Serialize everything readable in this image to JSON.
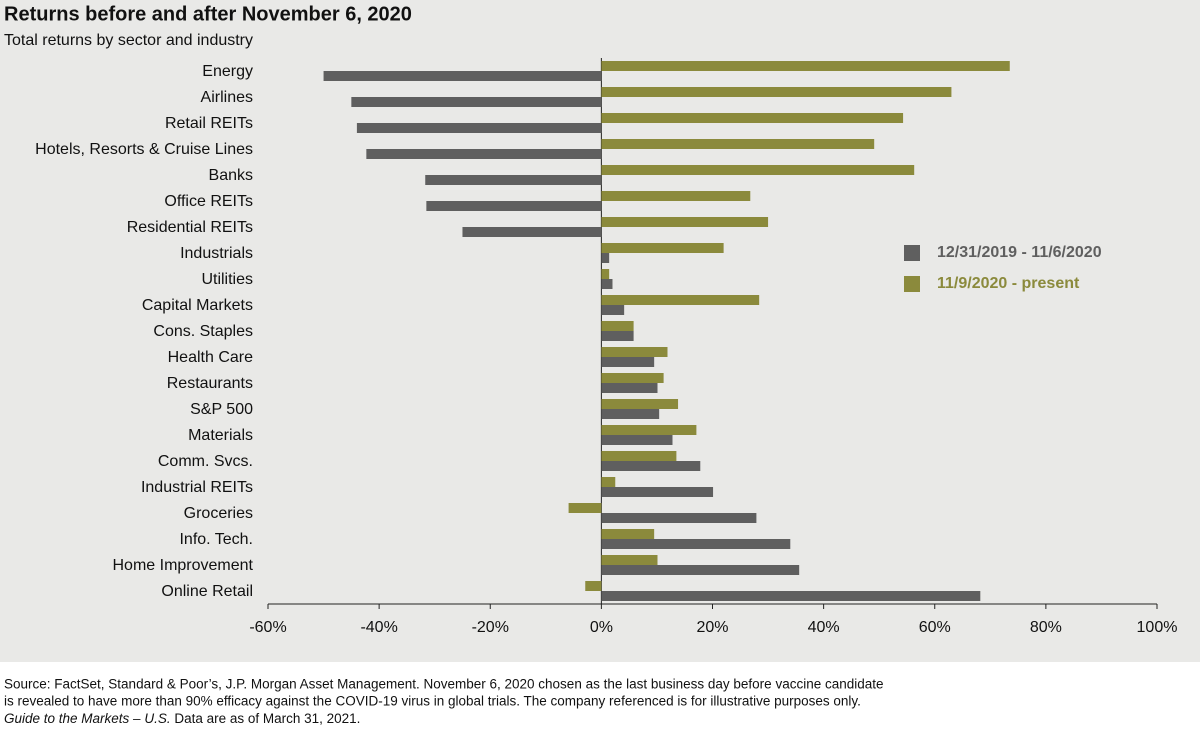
{
  "chart_data": {
    "type": "bar",
    "orientation": "horizontal",
    "title": "Returns before and after November 6, 2020",
    "subtitle": "Total returns by sector and industry",
    "categories": [
      "Energy",
      "Airlines",
      "Retail REITs",
      "Hotels, Resorts & Cruise Lines",
      "Banks",
      "Office REITs",
      "Residential REITs",
      "Industrials",
      "Utilities",
      "Capital Markets",
      "Cons. Staples",
      "Health Care",
      "Restaurants",
      "S&P 500",
      "Materials",
      "Comm. Svcs.",
      "Industrial REITs",
      "Groceries",
      "Info. Tech.",
      "Home Improvement",
      "Online Retail"
    ],
    "series": [
      {
        "name": "12/31/2019 - 11/6/2020",
        "color": "#5f5f5f",
        "values": [
          -50,
          -45,
          -44,
          -42.3,
          -31.7,
          -31.5,
          -25,
          1.4,
          2,
          4.1,
          5.8,
          9.5,
          10.1,
          10.4,
          12.8,
          17.8,
          20.1,
          27.9,
          34,
          35.6,
          68.2
        ]
      },
      {
        "name": "11/9/2020 - present",
        "color": "#8b8a3c",
        "values": [
          73.5,
          63,
          54.3,
          49.1,
          56.3,
          26.8,
          30,
          22,
          1.4,
          28.4,
          5.8,
          11.9,
          11.2,
          13.8,
          17.1,
          13.5,
          2.5,
          -5.9,
          9.5,
          10.1,
          -2.9
        ]
      }
    ],
    "xlim": [
      -60,
      100
    ],
    "xticks": [
      {
        "value": -60,
        "label": "-60%"
      },
      {
        "value": -40,
        "label": "-40%"
      },
      {
        "value": -20,
        "label": "-20%"
      },
      {
        "value": 0,
        "label": "0%"
      },
      {
        "value": 20,
        "label": "20%"
      },
      {
        "value": 40,
        "label": "40%"
      },
      {
        "value": 60,
        "label": "60%"
      },
      {
        "value": 80,
        "label": "80%"
      },
      {
        "value": 100,
        "label": "100%"
      }
    ],
    "grid": false,
    "legend_position": "right",
    "footnote": [
      "Source: FactSet, Standard & Poor’s, J.P. Morgan Asset Management. November 6, 2020 chosen as the last business day before vaccine candidate",
      "is revealed to have more than 90% efficacy against the COVID-19 virus in global trials. The company referenced is for illustrative purposes only."
    ],
    "footnote_italic": "Guide to the Markets – U.S.",
    "footnote_tail": " Data are as of March 31, 2021."
  }
}
